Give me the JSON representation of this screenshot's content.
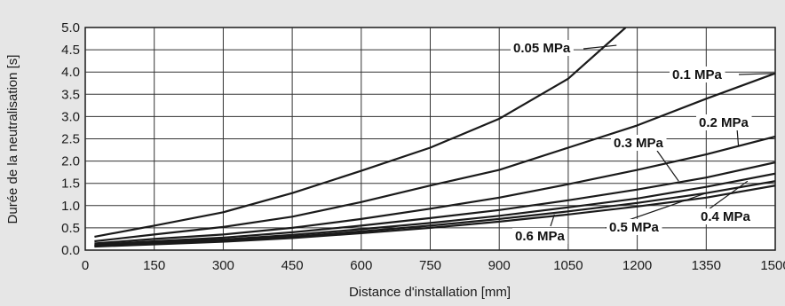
{
  "chart_data": {
    "type": "line",
    "xlabel": "Distance d'installation [mm]",
    "ylabel": "Durée de la neutralisation [s]",
    "xlim": [
      0,
      1500
    ],
    "ylim": [
      0,
      5.0
    ],
    "xticks": [
      0,
      150,
      300,
      450,
      600,
      750,
      900,
      1050,
      1200,
      1350,
      1500
    ],
    "yticks": [
      0.0,
      0.5,
      1.0,
      1.5,
      2.0,
      2.5,
      3.0,
      3.5,
      4.0,
      4.5,
      5.0
    ],
    "xtick_labels": [
      "0",
      "150",
      "300",
      "450",
      "600",
      "750",
      "900",
      "1050",
      "1200",
      "1350",
      "1500"
    ],
    "ytick_labels": [
      "0.0",
      "0.5",
      "1.0",
      "1.5",
      "2.0",
      "2.5",
      "3.0",
      "3.5",
      "4.0",
      "4.5",
      "5.0"
    ],
    "grid": true,
    "colors": {
      "background": "#e6e6e6",
      "plot": "#ffffff",
      "line": "#1a1a1a",
      "grid": "#333333"
    },
    "series": [
      {
        "name": "0.05 MPa",
        "x": [
          20,
          150,
          300,
          450,
          600,
          750,
          900,
          1050,
          1175
        ],
        "y": [
          0.3,
          0.55,
          0.85,
          1.28,
          1.78,
          2.3,
          2.95,
          3.85,
          5.0
        ]
      },
      {
        "name": "0.1 MPa",
        "x": [
          20,
          150,
          300,
          450,
          600,
          750,
          900,
          1050,
          1200,
          1350,
          1500
        ],
        "y": [
          0.2,
          0.35,
          0.52,
          0.75,
          1.08,
          1.45,
          1.8,
          2.3,
          2.8,
          3.4,
          3.97
        ]
      },
      {
        "name": "0.2 MPa",
        "x": [
          20,
          150,
          300,
          450,
          600,
          750,
          900,
          1050,
          1200,
          1350,
          1500
        ],
        "y": [
          0.15,
          0.25,
          0.35,
          0.5,
          0.7,
          0.93,
          1.18,
          1.48,
          1.8,
          2.15,
          2.55
        ]
      },
      {
        "name": "0.3 MPa",
        "x": [
          20,
          150,
          300,
          450,
          600,
          750,
          900,
          1050,
          1200,
          1350,
          1500
        ],
        "y": [
          0.12,
          0.2,
          0.28,
          0.4,
          0.55,
          0.72,
          0.9,
          1.12,
          1.36,
          1.63,
          1.97
        ]
      },
      {
        "name": "0.4 MPa",
        "x": [
          20,
          150,
          300,
          450,
          600,
          750,
          900,
          1050,
          1200,
          1350,
          1500
        ],
        "y": [
          0.1,
          0.17,
          0.24,
          0.34,
          0.47,
          0.61,
          0.77,
          0.96,
          1.16,
          1.42,
          1.72
        ]
      },
      {
        "name": "0.5 MPa",
        "x": [
          20,
          150,
          300,
          450,
          600,
          750,
          900,
          1050,
          1200,
          1350,
          1500
        ],
        "y": [
          0.09,
          0.15,
          0.21,
          0.3,
          0.42,
          0.55,
          0.7,
          0.87,
          1.06,
          1.28,
          1.55
        ]
      },
      {
        "name": "0.6 MPa",
        "x": [
          20,
          150,
          300,
          450,
          600,
          750,
          900,
          1050,
          1200,
          1350,
          1500
        ],
        "y": [
          0.08,
          0.13,
          0.19,
          0.27,
          0.38,
          0.5,
          0.64,
          0.8,
          0.98,
          1.18,
          1.45
        ]
      }
    ]
  }
}
